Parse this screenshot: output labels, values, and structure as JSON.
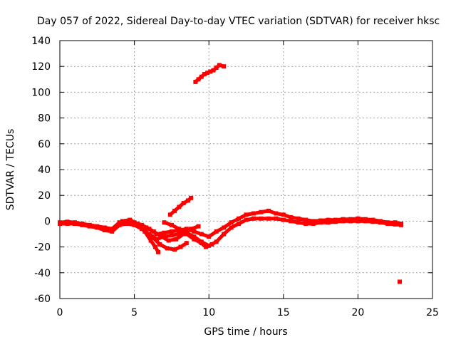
{
  "chart_data": {
    "type": "scatter",
    "title": "Day 057 of 2022, Sidereal Day-to-day VTEC variation (SDTVAR) for receiver hksc",
    "xlabel": "GPS time / hours",
    "ylabel": "SDTVAR / TECUs",
    "xlim": [
      0,
      25
    ],
    "ylim": [
      -60,
      140
    ],
    "xticks": [
      0,
      5,
      10,
      15,
      20,
      25
    ],
    "yticks": [
      -60,
      -40,
      -20,
      0,
      20,
      40,
      60,
      80,
      100,
      120,
      140
    ],
    "grid": true,
    "color": "#ff0000",
    "series": [
      {
        "name": "main-arc-upper",
        "x": [
          0,
          0.5,
          1,
          1.5,
          2,
          2.5,
          3,
          3.5,
          4,
          4.5,
          5,
          5.5,
          6,
          6.5,
          7,
          7.5,
          8,
          8.5,
          9,
          9.5,
          10,
          10.5,
          11,
          11.5,
          12,
          12.5,
          13,
          13.5,
          14,
          14.5,
          15,
          15.5,
          16,
          16.5,
          17,
          17.5,
          18,
          18.5,
          19,
          19.5,
          20,
          20.5,
          21,
          21.5,
          22,
          22.5,
          22.9
        ],
        "y": [
          -1,
          -0.5,
          -1,
          -2,
          -3,
          -4,
          -5,
          -6,
          -1,
          0,
          -1,
          -3,
          -6,
          -10,
          -9,
          -8,
          -7,
          -6,
          -8,
          -10,
          -12,
          -8,
          -5,
          -1,
          2,
          5,
          6,
          7,
          8,
          6,
          5,
          3,
          2,
          1,
          0,
          0.5,
          1,
          1,
          1.5,
          1.5,
          2,
          1.5,
          1,
          0,
          -1,
          -1,
          -2
        ]
      },
      {
        "name": "main-arc-lower",
        "x": [
          0,
          0.5,
          1,
          1.5,
          2,
          2.5,
          3,
          3.5,
          4,
          4.5,
          5,
          5.5,
          6,
          6.5,
          7,
          7.5,
          8,
          8.5,
          9,
          9.5,
          10,
          10.5,
          11,
          11.5,
          12,
          12.5,
          13,
          13.5,
          14,
          14.5,
          15,
          15.5,
          16,
          16.5,
          17,
          17.5,
          18,
          18.5,
          19,
          19.5,
          20,
          20.5,
          21,
          21.5,
          22,
          22.5,
          22.9
        ],
        "y": [
          -2,
          -2,
          -2,
          -3,
          -4,
          -5,
          -7,
          -8,
          -3,
          -2,
          -3,
          -6,
          -10,
          -14,
          -12,
          -11,
          -10,
          -9,
          -12,
          -16,
          -19,
          -16,
          -10,
          -5,
          -2,
          1,
          2,
          2,
          2,
          2,
          1,
          0,
          -1,
          -2,
          -2,
          -1,
          -1,
          -0.5,
          0,
          0,
          0,
          0,
          -0.5,
          -1,
          -2,
          -2.5,
          -3
        ]
      },
      {
        "name": "arc-dip",
        "x": [
          4.2,
          4.7,
          5.2,
          5.7,
          6.1,
          6.4,
          6.6
        ],
        "y": [
          0,
          1,
          -2,
          -8,
          -15,
          -20,
          -24
        ]
      },
      {
        "name": "arc-dip-return",
        "x": [
          6.2,
          6.7,
          7.2,
          7.7,
          8.1,
          8.5
        ],
        "y": [
          -12,
          -18,
          -21,
          -22,
          -20,
          -17
        ]
      },
      {
        "name": "arc-crossing",
        "x": [
          7,
          7.5,
          8,
          8.5,
          9,
          9.5,
          9.8,
          10.2
        ],
        "y": [
          -1,
          -3,
          -6,
          -10,
          -14,
          -17,
          -20,
          -18
        ]
      },
      {
        "name": "arc-crossing-2",
        "x": [
          5.8,
          6.3,
          6.8,
          7.3,
          7.8,
          8.3,
          8.8,
          9.3
        ],
        "y": [
          -5,
          -8,
          -12,
          -15,
          -14,
          -10,
          -6,
          -4
        ]
      },
      {
        "name": "arc-rise",
        "x": [
          7.4,
          7.7,
          8.0,
          8.3,
          8.6,
          8.8
        ],
        "y": [
          5,
          8,
          11,
          14,
          16,
          18
        ]
      },
      {
        "name": "arc-high",
        "x": [
          9.1,
          9.3,
          9.5,
          9.7,
          9.9,
          10.1,
          10.3,
          10.5,
          10.7,
          11
        ],
        "y": [
          108,
          110,
          112,
          114,
          115,
          116,
          117,
          119,
          121,
          120
        ]
      },
      {
        "name": "outlier",
        "x": [
          22.8
        ],
        "y": [
          -47
        ]
      }
    ]
  }
}
